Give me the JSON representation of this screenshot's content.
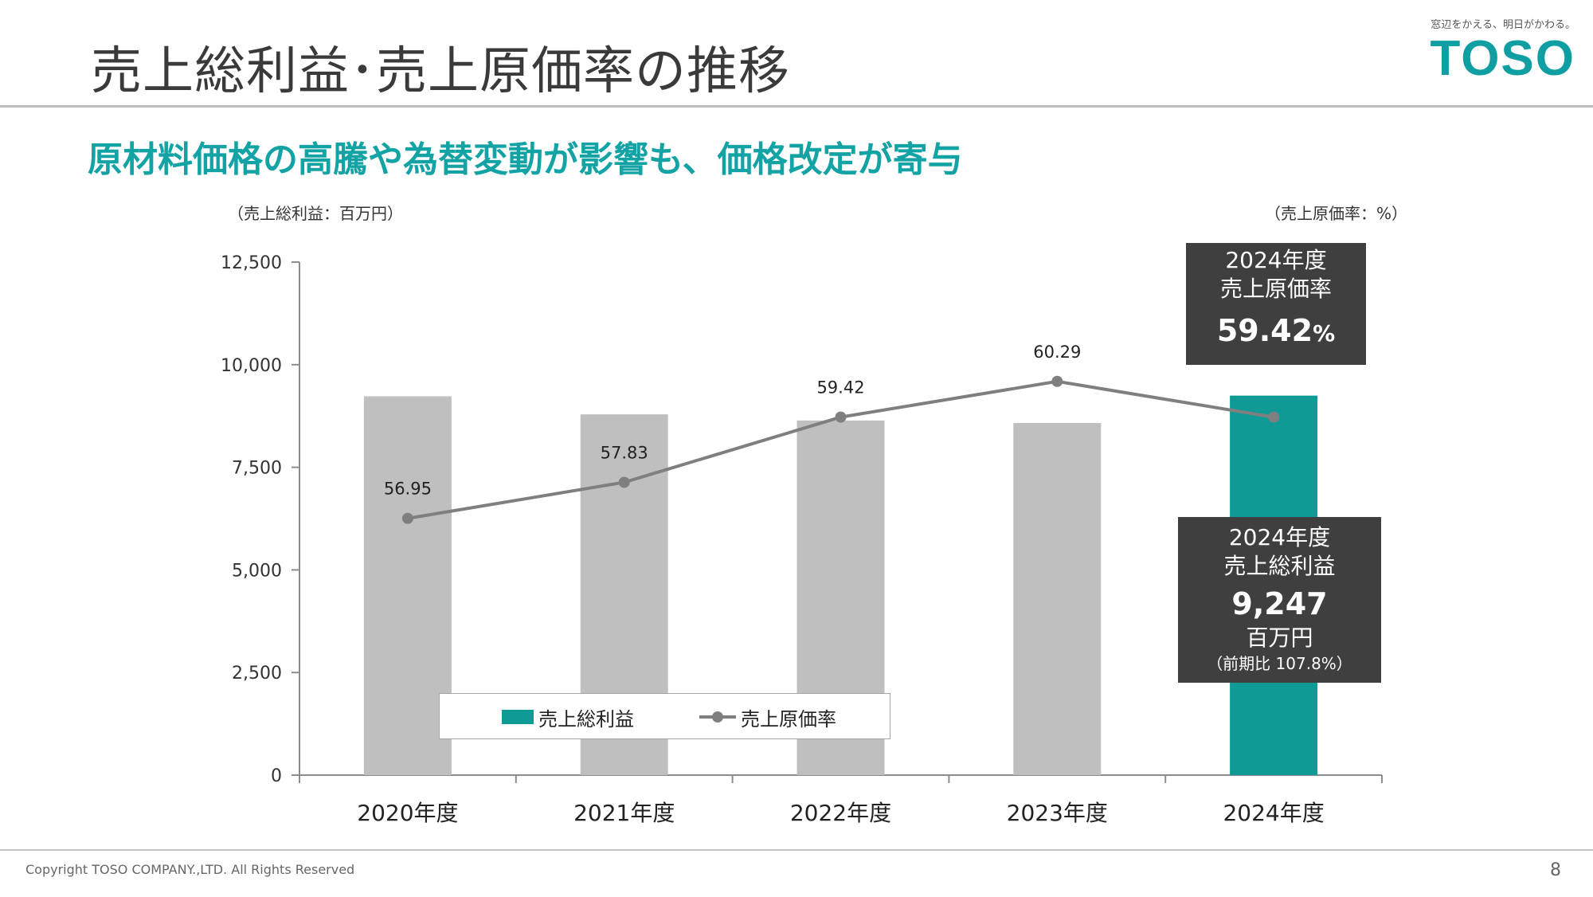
{
  "header": {
    "title": "売上総利益･売上原価率の推移",
    "logo_tagline": "窓辺をかえる、明日がかわる。",
    "logo_word": "TOSO"
  },
  "subtitle": "原材料価格の高騰や為替変動が影響も、価格改定が寄与",
  "units": {
    "left": "（売上総利益：百万円）",
    "right": "（売上原価率：%）"
  },
  "callouts": {
    "rate": {
      "line1": "2024年度",
      "line2": "売上原価率",
      "value": "59.42",
      "suffix": "%"
    },
    "profit": {
      "line1": "2024年度",
      "line2": "売上総利益",
      "value": "9,247",
      "line3": "百万円",
      "line4": "（前期比 107.8%）"
    }
  },
  "legend": {
    "bar": "売上総利益",
    "line": "売上原価率"
  },
  "colors": {
    "accent": "#13a3a5",
    "bar_default": "#bfbfbf",
    "bar_highlight": "#0f9a96",
    "line": "#7f7f7f",
    "callout_bg": "#3f3f3f"
  },
  "chart_data": {
    "type": "bar",
    "categories": [
      "2020年度",
      "2021年度",
      "2022年度",
      "2023年度",
      "2024年度"
    ],
    "ylim": [
      0,
      12500
    ],
    "yticks": [
      "0",
      "2,500",
      "5,000",
      "7,500",
      "10,000",
      "12,500"
    ],
    "series": [
      {
        "name": "売上総利益",
        "type": "bar",
        "axis": "left",
        "values": [
          9230,
          8790,
          8640,
          8580,
          9247
        ]
      },
      {
        "name": "売上原価率",
        "type": "line",
        "axis": "right",
        "values": [
          56.95,
          57.83,
          59.42,
          60.29,
          59.42
        ],
        "labels": [
          "56.95",
          "57.83",
          "59.42",
          "60.29",
          ""
        ]
      }
    ],
    "grid": false,
    "legend_position": "bottom-left-inside"
  },
  "footer": {
    "copyright": "Copyright TOSO COMPANY.,LTD. All Rights Reserved",
    "page": "8"
  }
}
